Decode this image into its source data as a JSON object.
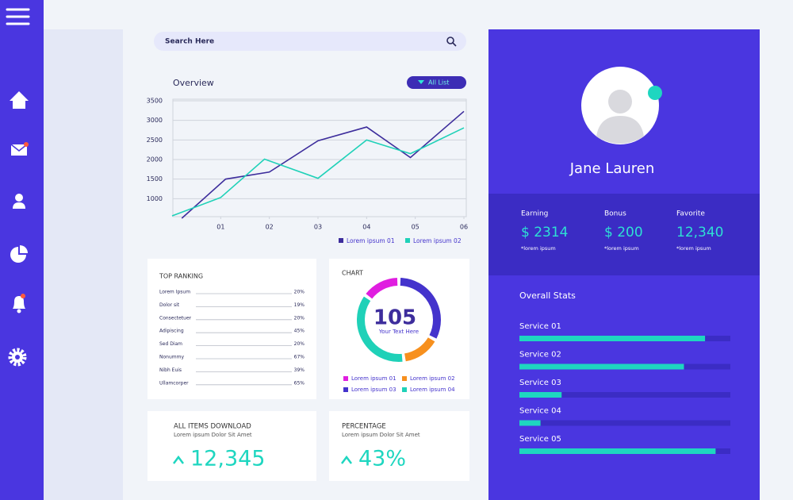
{
  "search": {
    "placeholder": "Search Here"
  },
  "overview": {
    "filter": "All List"
  },
  "chart_data": [
    {
      "type": "line",
      "title": "Overview",
      "xlim": [
        0,
        6
      ],
      "xticks": [
        {
          "value": 1,
          "label": "01"
        },
        {
          "value": 2,
          "label": "02"
        },
        {
          "value": 3,
          "label": "03"
        },
        {
          "value": 4,
          "label": "04"
        },
        {
          "value": 5,
          "label": "05"
        },
        {
          "value": 6,
          "label": "06"
        }
      ],
      "ylim": [
        500,
        3500
      ],
      "yticks": [
        1000,
        1500,
        2000,
        2500,
        3000,
        3500
      ],
      "grid": true,
      "series": [
        {
          "name": "Lorem ipsum 01",
          "color": "#3d2d9c",
          "x": [
            0.2,
            1.1,
            2,
            3,
            4,
            4.9,
            6
          ],
          "values": [
            500,
            1500,
            1680,
            2480,
            2830,
            2050,
            3230
          ]
        },
        {
          "name": "Lorem ipsum 02",
          "color": "#1fd1b8",
          "x": [
            0,
            1,
            1.9,
            3,
            4,
            4.9,
            6
          ],
          "values": [
            560,
            1030,
            2010,
            1520,
            2500,
            2150,
            2810
          ]
        }
      ]
    },
    {
      "type": "pie",
      "title": "CHART",
      "center_value": "105",
      "center_text": "Your Text Here",
      "categories": [
        "Lorem ipsum 03",
        "Lorem ipsum 02",
        "Lorem ipsum 04",
        "Lorem ipsum 01"
      ],
      "colors": [
        "#4433cc",
        "#f7901e",
        "#1fd1b8",
        "#e01ee0"
      ],
      "values": [
        33,
        15,
        37,
        15
      ]
    },
    {
      "type": "bar",
      "title": "Overall Stats",
      "categories": [
        "Service  01",
        "Service 02",
        "Service 03",
        "Service 04",
        "Service  05"
      ],
      "values": [
        88,
        78,
        20,
        10,
        93
      ],
      "xlim": [
        0,
        100
      ],
      "color": "#1ed6c0"
    }
  ],
  "ranking": {
    "title": "TOP RANKING",
    "rows": [
      [
        "Lorem Ipsum",
        "20%"
      ],
      [
        "Dolor sit",
        "19%"
      ],
      [
        "Consectetuer",
        "20%"
      ],
      [
        "Adipiscing",
        "45%"
      ],
      [
        "Sed Diam",
        "20%"
      ],
      [
        "Nonummy",
        "67%"
      ],
      [
        "Nibh Euis",
        "39%"
      ],
      [
        "Ullamcorper",
        "65%"
      ]
    ]
  },
  "cards": [
    {
      "title": "ALL ITEMS DOWNLOAD",
      "subtitle": "Lorem ipsum Dolor Sit Amet",
      "value": "12,345"
    },
    {
      "title": "PERCENTAGE",
      "subtitle": "Lorem ipsum Dolor Sit Amet",
      "value": "43%"
    }
  ],
  "profile": {
    "name": "Jane Lauren",
    "stats": [
      {
        "label": "Earning",
        "value": "$ 2314",
        "note": "*lorem ipsum"
      },
      {
        "label": "Bonus",
        "value": "$ 200",
        "note": "*lorem ipsum"
      },
      {
        "label": "Favorite",
        "value": "12,340",
        "note": "*lorem ipsum"
      }
    ]
  }
}
